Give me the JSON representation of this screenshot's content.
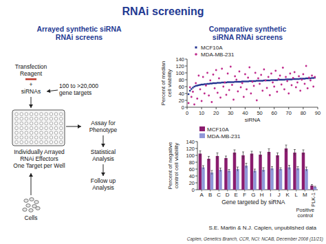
{
  "title": "RNAi screening",
  "diagram": {
    "heading": [
      "Arrayed synthetic siRNA",
      "RNAi screens"
    ],
    "reagent": [
      "Transfection",
      "Reagent",
      "+",
      "siRNAs"
    ],
    "targets": [
      "100 to >20,000",
      "gene targets"
    ],
    "plate": [
      "Individually Arrayed",
      "RNAi Effectors",
      "One Target per Well"
    ],
    "cells": "Cells",
    "steps": [
      [
        "Assay for",
        "Phenotype"
      ],
      [
        "Statistical",
        "Analysis"
      ],
      [
        "Follow up",
        "Analysis"
      ]
    ]
  },
  "charts_heading": [
    "Comparative synthetic",
    "siRNA RNAi screens"
  ],
  "credit": "S.E. Martin & N.J. Caplen, unpublished data",
  "footer": "Caplen, Genetics Branch, CCR, NCI: NCAB, December 2008 (11/21)",
  "chart_data": [
    {
      "type": "scatter",
      "y_label": [
        "Percent of median",
        "cell viability"
      ],
      "x_label": "siRNA",
      "xlim": [
        0,
        90
      ],
      "xticks": [
        0,
        10,
        20,
        30,
        40,
        50,
        60,
        70,
        80,
        90
      ],
      "ylim": [
        0,
        140
      ],
      "yticks": [
        0,
        20,
        40,
        60,
        80,
        100,
        120,
        140
      ],
      "legend": "top-left",
      "x": [
        1,
        2,
        3,
        4,
        5,
        6,
        7,
        8,
        9,
        10,
        11,
        12,
        13,
        14,
        15,
        16,
        17,
        18,
        19,
        20,
        21,
        22,
        23,
        24,
        25,
        26,
        27,
        28,
        29,
        30,
        31,
        32,
        33,
        34,
        35,
        36,
        37,
        38,
        39,
        40,
        41,
        42,
        43,
        44,
        45,
        46,
        47,
        48,
        49,
        50,
        51,
        52,
        53,
        54,
        55,
        56,
        57,
        58,
        59,
        60,
        61,
        62,
        63,
        64,
        65,
        66,
        67,
        68,
        69,
        70,
        71,
        72,
        73,
        74,
        75,
        76,
        77,
        78,
        79,
        80,
        81,
        82,
        83,
        84,
        85,
        86,
        87,
        88
      ],
      "series": [
        {
          "name": "MCF10A",
          "color": "#22308f",
          "marker": "square",
          "values": [
            38,
            48,
            53,
            57,
            60,
            62,
            63,
            64,
            65,
            66,
            66,
            67,
            67,
            68,
            68,
            69,
            69,
            70,
            70,
            70,
            71,
            71,
            71,
            72,
            72,
            72,
            72,
            73,
            73,
            73,
            73,
            73,
            74,
            74,
            74,
            74,
            74,
            75,
            75,
            75,
            75,
            75,
            76,
            76,
            76,
            76,
            76,
            77,
            77,
            77,
            77,
            77,
            78,
            78,
            78,
            78,
            78,
            79,
            79,
            79,
            79,
            79,
            80,
            80,
            80,
            80,
            80,
            81,
            81,
            81,
            81,
            81,
            82,
            82,
            82,
            82,
            82,
            83,
            83,
            83,
            83,
            84,
            84,
            84,
            84,
            85,
            85,
            86
          ]
        },
        {
          "name": "MDA-MB-231",
          "color": "#c02a8c",
          "marker": "circle",
          "values": [
            12,
            58,
            30,
            45,
            8,
            70,
            25,
            92,
            52,
            18,
            88,
            40,
            63,
            100,
            34,
            78,
            15,
            95,
            55,
            108,
            42,
            84,
            28,
            112,
            60,
            72,
            36,
            98,
            50,
            118,
            65,
            22,
            90,
            80,
            46,
            104,
            58,
            70,
            30,
            96,
            52,
            86,
            116,
            40,
            74,
            62,
            100,
            20,
            84,
            68,
            94,
            48,
            110,
            78,
            56,
            88,
            35,
            98,
            72,
            60,
            106,
            45,
            82,
            92,
            66,
            115,
            52,
            88,
            76,
            40,
            98,
            64,
            85,
            102,
            58,
            72,
            90,
            48,
            80,
            96,
            68,
            120,
            55,
            86,
            78,
            92,
            60,
            88
          ]
        }
      ]
    },
    {
      "type": "bar",
      "y_label": [
        "Percent of negative",
        "control cell viability"
      ],
      "x_label": "Gene targeted by siRNA",
      "annotation": [
        "Positive",
        "control"
      ],
      "categories": [
        "A",
        "B",
        "C",
        "D",
        "E",
        "F",
        "G",
        "H",
        "I",
        "J",
        "K",
        "L",
        "M",
        "PLK-1"
      ],
      "ylim": [
        0,
        140
      ],
      "yticks": [
        0,
        20,
        40,
        60,
        80,
        100,
        120,
        140
      ],
      "legend": "top-left",
      "series": [
        {
          "name": "MCF10A",
          "color": "#8a1c6e",
          "values": [
            105,
            90,
            98,
            92,
            108,
            100,
            105,
            102,
            110,
            100,
            120,
            108,
            108,
            12
          ],
          "errors": [
            8,
            7,
            9,
            6,
            8,
            10,
            7,
            8,
            9,
            7,
            10,
            9,
            8,
            3
          ]
        },
        {
          "name": "MDA-MB-231",
          "color": "#9097d8",
          "values": [
            65,
            50,
            58,
            55,
            60,
            70,
            55,
            58,
            62,
            60,
            65,
            62,
            60,
            8
          ],
          "errors": [
            5,
            6,
            5,
            4,
            6,
            7,
            5,
            6,
            5,
            4,
            6,
            5,
            6,
            2
          ]
        }
      ]
    }
  ]
}
